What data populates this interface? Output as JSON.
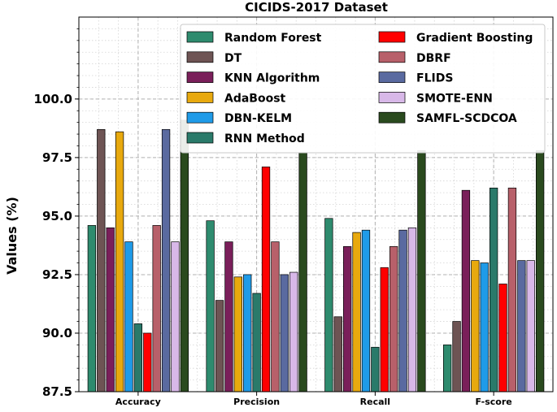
{
  "chart_data": {
    "type": "bar",
    "title": "CICIDS-2017 Dataset",
    "xlabel": "",
    "ylabel": "Values (%)",
    "ylim": [
      87.5,
      103.5
    ],
    "yticks": [
      87.5,
      90.0,
      92.5,
      95.0,
      97.5,
      100.0
    ],
    "ytick_labels": [
      "87.5",
      "90.0",
      "92.5",
      "95.0",
      "97.5",
      "100.0"
    ],
    "grid": true,
    "legend_location": "upper-right",
    "legend_columns": 2,
    "categories": [
      "Accuracy",
      "Precision",
      "Recall",
      "F-score"
    ],
    "series": [
      {
        "name": "Random Forest",
        "color": "#2e8b6e",
        "values": [
          94.6,
          94.8,
          94.9,
          89.5
        ]
      },
      {
        "name": "DT",
        "color": "#6e5454",
        "values": [
          98.7,
          91.4,
          90.7,
          90.5
        ]
      },
      {
        "name": "KNN Algorithm",
        "color": "#7a1f5a",
        "values": [
          94.5,
          93.9,
          93.7,
          96.1
        ]
      },
      {
        "name": "AdaBoost",
        "color": "#e8a90e",
        "values": [
          98.6,
          92.4,
          94.3,
          93.1
        ]
      },
      {
        "name": "DBN-KELM",
        "color": "#1f9be8",
        "values": [
          93.9,
          92.5,
          94.4,
          93.0
        ]
      },
      {
        "name": "RNN Method",
        "color": "#2a7a6a",
        "values": [
          90.4,
          91.7,
          89.4,
          96.2
        ]
      },
      {
        "name": "Gradient Boosting",
        "color": "#ff0000",
        "values": [
          90.0,
          97.1,
          92.8,
          92.1
        ]
      },
      {
        "name": "DBRF",
        "color": "#b8606a",
        "values": [
          94.6,
          93.9,
          93.7,
          96.2
        ]
      },
      {
        "name": "FLIDS",
        "color": "#5a6aa0",
        "values": [
          98.7,
          92.5,
          94.4,
          93.1
        ]
      },
      {
        "name": "SMOTE-ENN",
        "color": "#d8b8e8",
        "values": [
          93.9,
          92.6,
          94.5,
          93.1
        ]
      },
      {
        "name": "SAMFL-SCDCOA",
        "color": "#2a4a1e",
        "values": [
          99.1,
          97.7,
          97.8,
          97.8
        ]
      }
    ]
  }
}
